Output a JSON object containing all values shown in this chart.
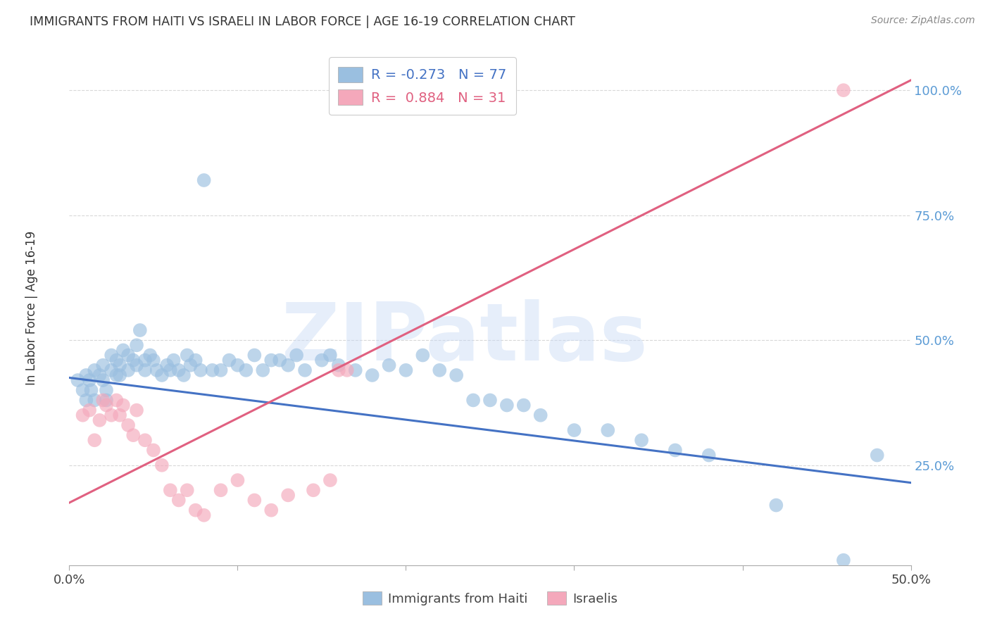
{
  "title": "IMMIGRANTS FROM HAITI VS ISRAELI IN LABOR FORCE | AGE 16-19 CORRELATION CHART",
  "source": "Source: ZipAtlas.com",
  "ylabel": "In Labor Force | Age 16-19",
  "watermark": "ZIPatlas",
  "haiti_color": "#9abfe0",
  "israeli_color": "#f4a8bb",
  "haiti_line_color": "#4472c4",
  "israeli_line_color": "#e06080",
  "legend_R_haiti": "-0.273",
  "legend_N_haiti": "77",
  "legend_R_israeli": "0.884",
  "legend_N_israeli": "31",
  "haiti_scatter_x": [
    0.005,
    0.008,
    0.01,
    0.01,
    0.012,
    0.013,
    0.015,
    0.015,
    0.018,
    0.02,
    0.02,
    0.022,
    0.022,
    0.025,
    0.025,
    0.028,
    0.028,
    0.03,
    0.03,
    0.032,
    0.035,
    0.035,
    0.038,
    0.04,
    0.04,
    0.042,
    0.045,
    0.045,
    0.048,
    0.05,
    0.052,
    0.055,
    0.058,
    0.06,
    0.062,
    0.065,
    0.068,
    0.07,
    0.072,
    0.075,
    0.078,
    0.08,
    0.085,
    0.09,
    0.095,
    0.1,
    0.105,
    0.11,
    0.115,
    0.12,
    0.125,
    0.13,
    0.135,
    0.14,
    0.15,
    0.155,
    0.16,
    0.17,
    0.18,
    0.19,
    0.2,
    0.21,
    0.22,
    0.23,
    0.24,
    0.25,
    0.26,
    0.27,
    0.28,
    0.3,
    0.32,
    0.34,
    0.36,
    0.38,
    0.42,
    0.46,
    0.48
  ],
  "haiti_scatter_y": [
    0.42,
    0.4,
    0.43,
    0.38,
    0.42,
    0.4,
    0.44,
    0.38,
    0.43,
    0.42,
    0.45,
    0.4,
    0.38,
    0.44,
    0.47,
    0.43,
    0.46,
    0.45,
    0.43,
    0.48,
    0.47,
    0.44,
    0.46,
    0.45,
    0.49,
    0.52,
    0.46,
    0.44,
    0.47,
    0.46,
    0.44,
    0.43,
    0.45,
    0.44,
    0.46,
    0.44,
    0.43,
    0.47,
    0.45,
    0.46,
    0.44,
    0.82,
    0.44,
    0.44,
    0.46,
    0.45,
    0.44,
    0.47,
    0.44,
    0.46,
    0.46,
    0.45,
    0.47,
    0.44,
    0.46,
    0.47,
    0.45,
    0.44,
    0.43,
    0.45,
    0.44,
    0.47,
    0.44,
    0.43,
    0.38,
    0.38,
    0.37,
    0.37,
    0.35,
    0.32,
    0.32,
    0.3,
    0.28,
    0.27,
    0.17,
    0.06,
    0.27
  ],
  "israeli_scatter_x": [
    0.008,
    0.012,
    0.015,
    0.018,
    0.02,
    0.022,
    0.025,
    0.028,
    0.03,
    0.032,
    0.035,
    0.038,
    0.04,
    0.045,
    0.05,
    0.055,
    0.06,
    0.065,
    0.07,
    0.075,
    0.08,
    0.09,
    0.1,
    0.11,
    0.12,
    0.13,
    0.145,
    0.155,
    0.16,
    0.165,
    0.46
  ],
  "israeli_scatter_y": [
    0.35,
    0.36,
    0.3,
    0.34,
    0.38,
    0.37,
    0.35,
    0.38,
    0.35,
    0.37,
    0.33,
    0.31,
    0.36,
    0.3,
    0.28,
    0.25,
    0.2,
    0.18,
    0.2,
    0.16,
    0.15,
    0.2,
    0.22,
    0.18,
    0.16,
    0.19,
    0.2,
    0.22,
    0.44,
    0.44,
    1.0
  ],
  "haiti_trendline_x": [
    0.0,
    0.5
  ],
  "haiti_trendline_y": [
    0.425,
    0.215
  ],
  "israeli_trendline_x": [
    0.0,
    0.5
  ],
  "israeli_trendline_y": [
    0.175,
    1.02
  ],
  "xlim": [
    0.0,
    0.5
  ],
  "ylim": [
    0.05,
    1.08
  ],
  "ytick_values": [
    0.25,
    0.5,
    0.75,
    1.0
  ],
  "ytick_labels": [
    "25.0%",
    "50.0%",
    "75.0%",
    "100.0%"
  ],
  "xtick_values": [
    0.0,
    0.1,
    0.2,
    0.3,
    0.4,
    0.5
  ],
  "grid_color": "#d8d8d8",
  "background_color": "#ffffff",
  "title_color": "#333333",
  "axis_label_color": "#333333",
  "tick_color_right": "#5b9bd5",
  "tick_color_bottom": "#444444",
  "legend_text_color_blue": "#4472c4",
  "legend_text_color_pink": "#e06080",
  "source_color": "#888888"
}
